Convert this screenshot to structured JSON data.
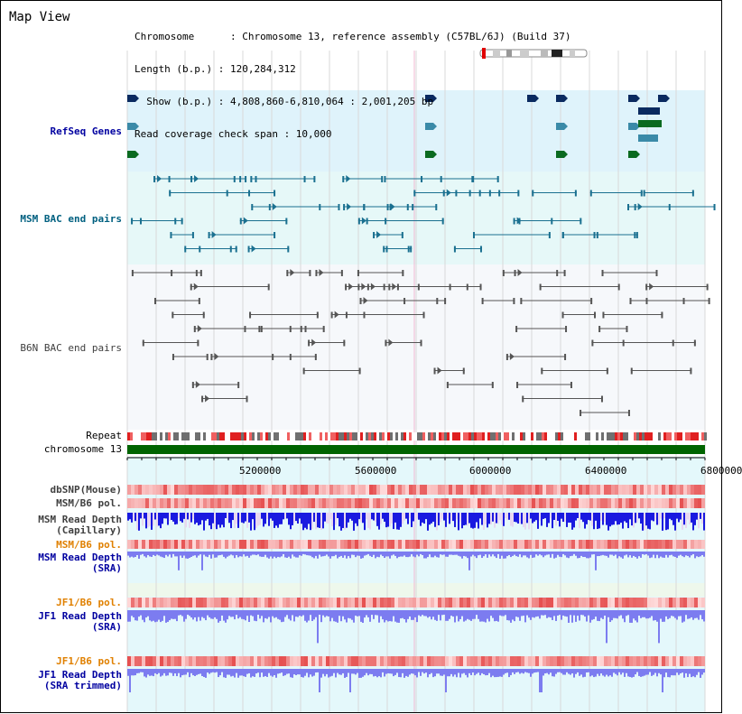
{
  "header": {
    "title": "Map View",
    "info_lines": [
      "Chromosome      : Chromosome 13, reference assembly (C57BL/6J) (Build 37)",
      "Length (b.p.) : 120,284,312",
      "  Show (b.p.) : 4,808,860-6,810,064 : 2,001,205 bp",
      "Read coverage check span : 10,000"
    ]
  },
  "tracks": {
    "refseq": "RefSeq Genes",
    "msm_bac": "MSM BAC end pairs",
    "b6n_bac": "B6N BAC end pairs",
    "repeat": "Repeat",
    "chromosome": "chromosome 13",
    "dbsnp": "dbSNP(Mouse)",
    "msm_b6_pol": "MSM/B6 pol.",
    "msm_depth_cap_1": "MSM Read Depth",
    "msm_depth_cap_2": "(Capillary)",
    "msm_b6_pol_2": "MSM/B6 pol.",
    "msm_depth_sra_1": "MSM Read Depth",
    "msm_depth_sra_2": "(SRA)",
    "jf1_b6_pol": "JF1/B6 pol.",
    "jf1_depth_sra_1": "JF1 Read Depth",
    "jf1_depth_sra_2": "(SRA)",
    "jf1_b6_pol_2": "JF1/B6 pol.",
    "jf1_depth_trim_1": "JF1 Read Depth",
    "jf1_depth_trim_2": "(SRA trimmed)"
  },
  "axis": {
    "ticks": [
      "5200000",
      "5600000",
      "6000000",
      "6400000",
      "6800000"
    ]
  },
  "colors": {
    "refseq_bg": "#dff3fb",
    "msm_bac_bg": "#e6f8f8",
    "b6n_bg": "#f6f8fb",
    "lower_bg": "#e4f8fb",
    "chromosome_bar": "#006400",
    "blue_label": "#0000a0",
    "teal_label": "#006080",
    "orange_label": "#e08000",
    "gray_label": "#404040",
    "depth_dark": "#1a1ae0",
    "depth_light": "#7c7cf0"
  }
}
